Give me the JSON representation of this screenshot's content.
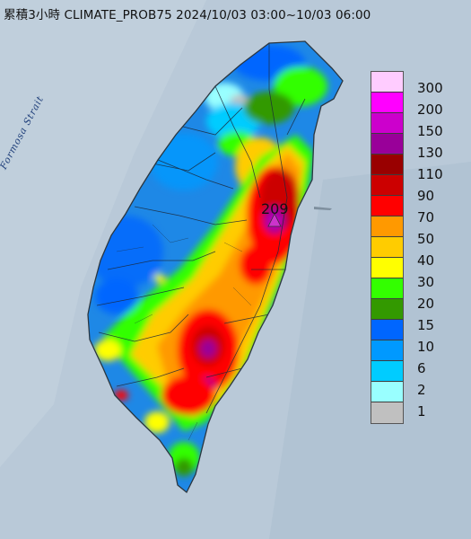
{
  "title": "累積3小時 CLIMATE_PROB75 2024/10/03 03:00~10/03 06:00",
  "map": {
    "strait_label": "Formosa Strait",
    "peak_value": "209",
    "peak_marker": "triangle-marker",
    "land_base_color": "#1e88e6",
    "sea_color": "#b9c9d8"
  },
  "legend": {
    "items": [
      {
        "label": "300",
        "color": "#ffccff"
      },
      {
        "label": "200",
        "color": "#ff00ff"
      },
      {
        "label": "150",
        "color": "#cc00cc"
      },
      {
        "label": "130",
        "color": "#990099"
      },
      {
        "label": "110",
        "color": "#990000"
      },
      {
        "label": "90",
        "color": "#cc0000"
      },
      {
        "label": "70",
        "color": "#ff0000"
      },
      {
        "label": "50",
        "color": "#ff9900"
      },
      {
        "label": "40",
        "color": "#ffcc00"
      },
      {
        "label": "30",
        "color": "#ffff00"
      },
      {
        "label": "20",
        "color": "#33ff00"
      },
      {
        "label": "15",
        "color": "#339900"
      },
      {
        "label": "10",
        "color": "#0066ff"
      },
      {
        "label": "6",
        "color": "#0099ff"
      },
      {
        "label": "2",
        "color": "#00ccff"
      },
      {
        "label": "1",
        "color": "#99ffff"
      },
      {
        "label": "",
        "color": "#c0c0c0"
      }
    ]
  }
}
